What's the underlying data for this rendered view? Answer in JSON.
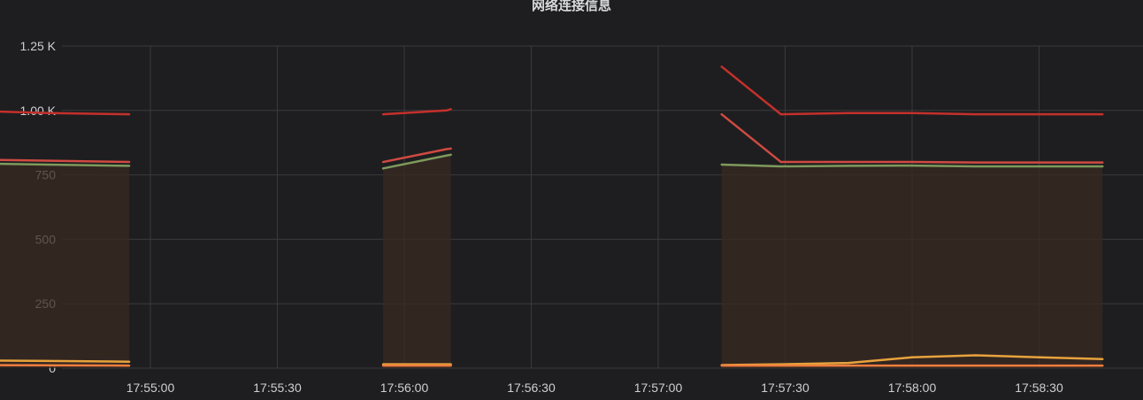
{
  "panel": {
    "title": "网络连接信息"
  },
  "chart_data": {
    "type": "line",
    "title": "网络连接信息",
    "xlabel": "",
    "ylabel": "",
    "ylim": [
      0,
      1250
    ],
    "x_range": [
      "17:54:15",
      "17:59:00"
    ],
    "y_ticks": [
      {
        "value": 0,
        "label": "0"
      },
      {
        "value": 250,
        "label": "250"
      },
      {
        "value": 500,
        "label": "500"
      },
      {
        "value": 750,
        "label": "750"
      },
      {
        "value": 1000,
        "label": "1.00 K"
      },
      {
        "value": 1250,
        "label": "1.25 K"
      }
    ],
    "x_ticks": [
      "17:55:00",
      "17:55:30",
      "17:56:00",
      "17:56:30",
      "17:57:00",
      "17:57:30",
      "17:58:00",
      "17:58:30"
    ],
    "grid": true,
    "legend": "none",
    "series": [
      {
        "color": "#c4302b",
        "width": 2.5,
        "fill": false,
        "segments": [
          [
            [
              "17:54:15",
              1000
            ],
            [
              "17:54:36",
              990
            ],
            [
              "17:54:55",
              985
            ]
          ],
          [
            [
              "17:55:55",
              985
            ],
            [
              "17:56:10",
              1000
            ],
            [
              "17:56:11",
              1005
            ]
          ],
          [
            [
              "17:57:15",
              1170
            ],
            [
              "17:57:29",
              985
            ],
            [
              "17:57:45",
              990
            ],
            [
              "17:58:00",
              990
            ],
            [
              "17:58:15",
              985
            ],
            [
              "17:58:30",
              985
            ],
            [
              "17:58:45",
              985
            ]
          ]
        ]
      },
      {
        "color": "#d04a42",
        "width": 2.5,
        "fill": false,
        "segments": [
          [
            [
              "17:54:15",
              810
            ],
            [
              "17:54:36",
              805
            ],
            [
              "17:54:55",
              800
            ]
          ],
          [
            [
              "17:55:55",
              800
            ],
            [
              "17:56:10",
              850
            ],
            [
              "17:56:11",
              852
            ]
          ],
          [
            [
              "17:57:15",
              985
            ],
            [
              "17:57:29",
              800
            ],
            [
              "17:57:45",
              800
            ],
            [
              "17:58:00",
              800
            ],
            [
              "17:58:15",
              798
            ],
            [
              "17:58:30",
              798
            ],
            [
              "17:58:45",
              798
            ]
          ]
        ]
      },
      {
        "color": "#7e9a5c",
        "width": 2.5,
        "fill": true,
        "fill_color": "#3a2a22",
        "segments": [
          [
            [
              "17:54:15",
              795
            ],
            [
              "17:54:36",
              790
            ],
            [
              "17:54:55",
              785
            ]
          ],
          [
            [
              "17:55:55",
              775
            ],
            [
              "17:56:10",
              825
            ],
            [
              "17:56:11",
              828
            ]
          ],
          [
            [
              "17:57:15",
              790
            ],
            [
              "17:57:29",
              783
            ],
            [
              "17:57:45",
              785
            ],
            [
              "17:58:00",
              786
            ],
            [
              "17:58:15",
              783
            ],
            [
              "17:58:30",
              783
            ],
            [
              "17:58:45",
              783
            ]
          ]
        ]
      },
      {
        "color": "#e8a33c",
        "width": 2.5,
        "fill": false,
        "segments": [
          [
            [
              "17:54:15",
              30
            ],
            [
              "17:54:36",
              28
            ],
            [
              "17:54:55",
              25
            ]
          ],
          [
            [
              "17:55:55",
              15
            ],
            [
              "17:56:11",
              15
            ]
          ],
          [
            [
              "17:57:15",
              12
            ],
            [
              "17:57:29",
              15
            ],
            [
              "17:57:45",
              20
            ],
            [
              "17:58:00",
              42
            ],
            [
              "17:58:15",
              50
            ],
            [
              "17:58:30",
              42
            ],
            [
              "17:58:45",
              35
            ]
          ]
        ]
      },
      {
        "color": "#ef7e3f",
        "width": 2.5,
        "fill": false,
        "segments": [
          [
            [
              "17:54:15",
              12
            ],
            [
              "17:54:55",
              10
            ]
          ],
          [
            [
              "17:55:55",
              10
            ],
            [
              "17:56:11",
              10
            ]
          ],
          [
            [
              "17:57:15",
              10
            ],
            [
              "17:58:45",
              10
            ]
          ]
        ]
      }
    ]
  }
}
